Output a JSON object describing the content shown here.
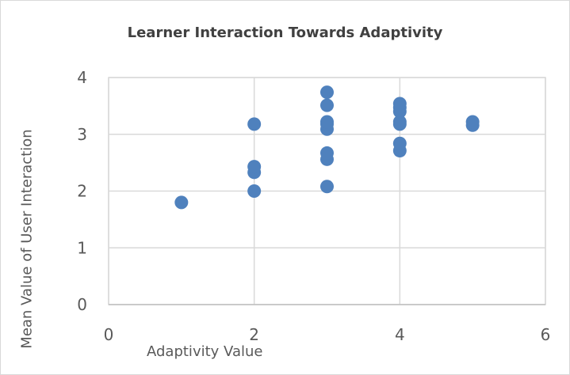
{
  "chart_data": {
    "type": "scatter",
    "title": "Learner Interaction Towards Adaptivity",
    "xlabel": "Adaptivity Value",
    "ylabel": "Mean Value of User Interaction",
    "xlim": [
      0,
      6
    ],
    "ylim": [
      0,
      4
    ],
    "xticks": [
      0,
      2,
      4,
      6
    ],
    "yticks": [
      0,
      1,
      2,
      3,
      4
    ],
    "grid": true,
    "marker_color": "#4f81bd",
    "points": [
      {
        "x": 1,
        "y": 1.8
      },
      {
        "x": 2,
        "y": 2.0
      },
      {
        "x": 2,
        "y": 2.33
      },
      {
        "x": 2,
        "y": 2.43
      },
      {
        "x": 2,
        "y": 3.18
      },
      {
        "x": 3,
        "y": 2.08
      },
      {
        "x": 3,
        "y": 2.56
      },
      {
        "x": 3,
        "y": 2.67
      },
      {
        "x": 3,
        "y": 3.09
      },
      {
        "x": 3,
        "y": 3.18
      },
      {
        "x": 3,
        "y": 3.22
      },
      {
        "x": 3,
        "y": 3.51
      },
      {
        "x": 3,
        "y": 3.74
      },
      {
        "x": 4,
        "y": 2.71
      },
      {
        "x": 4,
        "y": 2.84
      },
      {
        "x": 4,
        "y": 3.18
      },
      {
        "x": 4,
        "y": 3.22
      },
      {
        "x": 4,
        "y": 3.4
      },
      {
        "x": 4,
        "y": 3.47
      },
      {
        "x": 4,
        "y": 3.54
      },
      {
        "x": 5,
        "y": 3.16
      },
      {
        "x": 5,
        "y": 3.22
      }
    ]
  }
}
